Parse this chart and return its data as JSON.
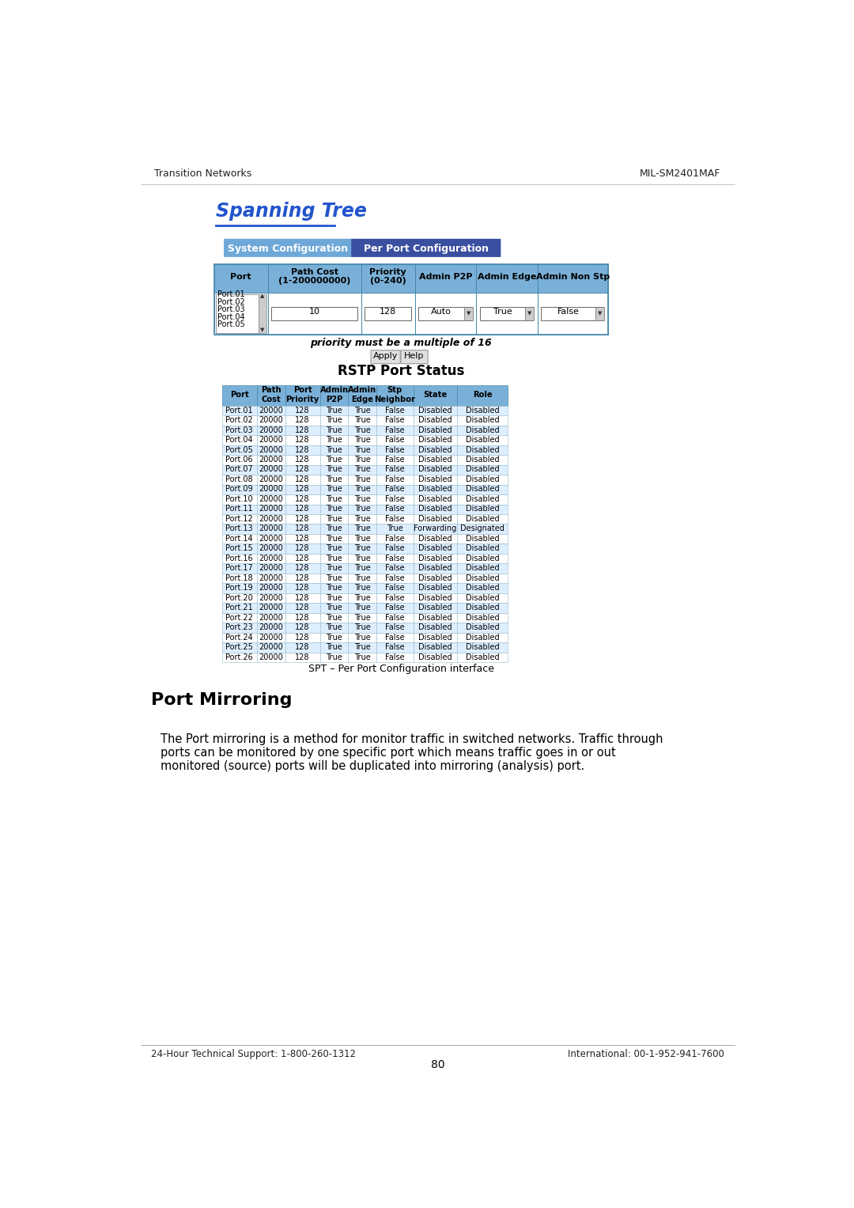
{
  "header_left": "Transition Networks",
  "header_right": "MIL-SM2401MAF",
  "section_title": "Spanning Tree",
  "tab1": "System Configuration",
  "tab2": "Per Port Configuration",
  "config_headers": [
    "Port",
    "Path Cost\n(1-200000000)",
    "Priority\n(0-240)",
    "Admin P2P",
    "Admin Edge",
    "Admin Non Stp"
  ],
  "config_port_list": [
    "Port.01",
    "Port.02",
    "Port.03",
    "Port.04",
    "Port.05"
  ],
  "config_values": {
    "path_cost": "10",
    "priority": "128",
    "admin_p2p": "Auto",
    "admin_edge": "True",
    "admin_non_stp": "False"
  },
  "priority_note": "priority must be a multiple of 16",
  "rstp_title": "RSTP Port Status",
  "rstp_headers": [
    "Port",
    "Path\nCost",
    "Port\nPriority",
    "Admin\nP2P",
    "Admin\nEdge",
    "Stp\nNeighbor",
    "State",
    "Role"
  ],
  "rstp_rows": [
    [
      "Port.01",
      "20000",
      "128",
      "True",
      "True",
      "False",
      "Disabled",
      "Disabled"
    ],
    [
      "Port.02",
      "20000",
      "128",
      "True",
      "True",
      "False",
      "Disabled",
      "Disabled"
    ],
    [
      "Port.03",
      "20000",
      "128",
      "True",
      "True",
      "False",
      "Disabled",
      "Disabled"
    ],
    [
      "Port.04",
      "20000",
      "128",
      "True",
      "True",
      "False",
      "Disabled",
      "Disabled"
    ],
    [
      "Port.05",
      "20000",
      "128",
      "True",
      "True",
      "False",
      "Disabled",
      "Disabled"
    ],
    [
      "Port.06",
      "20000",
      "128",
      "True",
      "True",
      "False",
      "Disabled",
      "Disabled"
    ],
    [
      "Port.07",
      "20000",
      "128",
      "True",
      "True",
      "False",
      "Disabled",
      "Disabled"
    ],
    [
      "Port.08",
      "20000",
      "128",
      "True",
      "True",
      "False",
      "Disabled",
      "Disabled"
    ],
    [
      "Port.09",
      "20000",
      "128",
      "True",
      "True",
      "False",
      "Disabled",
      "Disabled"
    ],
    [
      "Port.10",
      "20000",
      "128",
      "True",
      "True",
      "False",
      "Disabled",
      "Disabled"
    ],
    [
      "Port.11",
      "20000",
      "128",
      "True",
      "True",
      "False",
      "Disabled",
      "Disabled"
    ],
    [
      "Port.12",
      "20000",
      "128",
      "True",
      "True",
      "False",
      "Disabled",
      "Disabled"
    ],
    [
      "Port.13",
      "20000",
      "128",
      "True",
      "True",
      "True",
      "Forwarding",
      "Designated"
    ],
    [
      "Port.14",
      "20000",
      "128",
      "True",
      "True",
      "False",
      "Disabled",
      "Disabled"
    ],
    [
      "Port.15",
      "20000",
      "128",
      "True",
      "True",
      "False",
      "Disabled",
      "Disabled"
    ],
    [
      "Port.16",
      "20000",
      "128",
      "True",
      "True",
      "False",
      "Disabled",
      "Disabled"
    ],
    [
      "Port.17",
      "20000",
      "128",
      "True",
      "True",
      "False",
      "Disabled",
      "Disabled"
    ],
    [
      "Port.18",
      "20000",
      "128",
      "True",
      "True",
      "False",
      "Disabled",
      "Disabled"
    ],
    [
      "Port.19",
      "20000",
      "128",
      "True",
      "True",
      "False",
      "Disabled",
      "Disabled"
    ],
    [
      "Port.20",
      "20000",
      "128",
      "True",
      "True",
      "False",
      "Disabled",
      "Disabled"
    ],
    [
      "Port.21",
      "20000",
      "128",
      "True",
      "True",
      "False",
      "Disabled",
      "Disabled"
    ],
    [
      "Port.22",
      "20000",
      "128",
      "True",
      "True",
      "False",
      "Disabled",
      "Disabled"
    ],
    [
      "Port.23",
      "20000",
      "128",
      "True",
      "True",
      "False",
      "Disabled",
      "Disabled"
    ],
    [
      "Port.24",
      "20000",
      "128",
      "True",
      "True",
      "False",
      "Disabled",
      "Disabled"
    ],
    [
      "Port.25",
      "20000",
      "128",
      "True",
      "True",
      "False",
      "Disabled",
      "Disabled"
    ],
    [
      "Port.26",
      "20000",
      "128",
      "True",
      "True",
      "False",
      "Disabled",
      "Disabled"
    ]
  ],
  "caption": "SPT – Per Port Configuration interface",
  "section2_title": "Port Mirroring",
  "body_line1": "The Port mirroring is a method for monitor traffic in switched networks. Traffic through",
  "body_line2": "ports can be monitored by one specific port which means traffic goes in or out",
  "body_line3": "monitored (source) ports will be duplicated into mirroring (analysis) port.",
  "footer_left": "24-Hour Technical Support: 1-800-260-1312",
  "footer_right": "International: 00-1-952-941-7600",
  "page_number": "80",
  "bg_color": "#ffffff",
  "tab1_color": "#6ea8d8",
  "tab2_color": "#3a4fa0",
  "table_header_color": "#7ab0d8",
  "table_row_even": "#ddeeff",
  "table_row_odd": "#ffffff",
  "title_color": "#2255cc"
}
